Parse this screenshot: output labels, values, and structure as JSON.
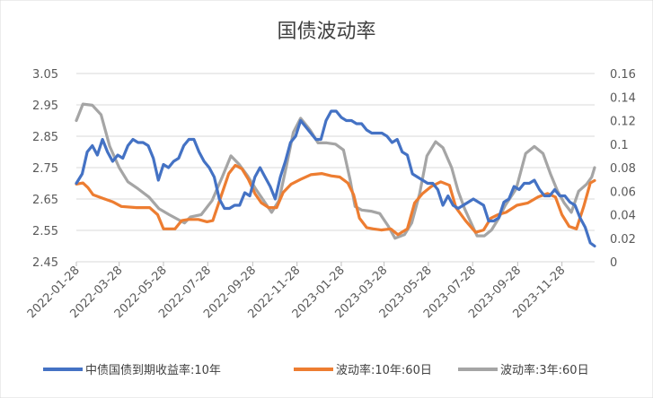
{
  "chart_data": {
    "type": "line",
    "title": "国债波动率",
    "y_left": {
      "min": 2.45,
      "max": 3.05,
      "ticks": [
        "3.05",
        "2.95",
        "2.85",
        "2.75",
        "2.65",
        "2.55",
        "2.45"
      ]
    },
    "y_right": {
      "min": 0,
      "max": 0.16,
      "ticks": [
        "0.16",
        "0.14",
        "0.12",
        "0.1",
        "0.08",
        "0.06",
        "0.04",
        "0.02",
        "0"
      ]
    },
    "x_ticks": [
      "2022-01-28",
      "2022-03-28",
      "2022-05-28",
      "2022-07-28",
      "2022-09-28",
      "2022-11-28",
      "2023-01-28",
      "2023-03-28",
      "2023-05-28",
      "2023-07-28",
      "2023-09-28",
      "2023-11-28"
    ],
    "x_range": [
      "2022-01-28",
      "2024-01-12"
    ],
    "grid": "horizontal",
    "legend_position": "bottom",
    "series": [
      {
        "name": "中债国债到期收益率:10年",
        "axis": "left",
        "color": "#4472C4",
        "points": [
          [
            "2022-01-28",
            2.7
          ],
          [
            "2022-02-05",
            2.73
          ],
          [
            "2022-02-12",
            2.8
          ],
          [
            "2022-02-19",
            2.82
          ],
          [
            "2022-02-26",
            2.79
          ],
          [
            "2022-03-05",
            2.84
          ],
          [
            "2022-03-12",
            2.8
          ],
          [
            "2022-03-19",
            2.77
          ],
          [
            "2022-03-26",
            2.79
          ],
          [
            "2022-04-02",
            2.78
          ],
          [
            "2022-04-09",
            2.82
          ],
          [
            "2022-04-16",
            2.84
          ],
          [
            "2022-04-23",
            2.83
          ],
          [
            "2022-04-30",
            2.83
          ],
          [
            "2022-05-07",
            2.82
          ],
          [
            "2022-05-14",
            2.78
          ],
          [
            "2022-05-21",
            2.71
          ],
          [
            "2022-05-28",
            2.76
          ],
          [
            "2022-06-04",
            2.75
          ],
          [
            "2022-06-11",
            2.77
          ],
          [
            "2022-06-18",
            2.78
          ],
          [
            "2022-06-25",
            2.82
          ],
          [
            "2022-07-02",
            2.84
          ],
          [
            "2022-07-09",
            2.84
          ],
          [
            "2022-07-16",
            2.8
          ],
          [
            "2022-07-23",
            2.77
          ],
          [
            "2022-07-30",
            2.75
          ],
          [
            "2022-08-06",
            2.72
          ],
          [
            "2022-08-13",
            2.65
          ],
          [
            "2022-08-20",
            2.62
          ],
          [
            "2022-08-27",
            2.62
          ],
          [
            "2022-09-03",
            2.63
          ],
          [
            "2022-09-10",
            2.63
          ],
          [
            "2022-09-17",
            2.67
          ],
          [
            "2022-09-24",
            2.66
          ],
          [
            "2022-10-01",
            2.72
          ],
          [
            "2022-10-08",
            2.75
          ],
          [
            "2022-10-15",
            2.72
          ],
          [
            "2022-10-22",
            2.69
          ],
          [
            "2022-10-29",
            2.65
          ],
          [
            "2022-11-05",
            2.72
          ],
          [
            "2022-11-12",
            2.77
          ],
          [
            "2022-11-19",
            2.83
          ],
          [
            "2022-11-26",
            2.85
          ],
          [
            "2022-12-03",
            2.9
          ],
          [
            "2022-12-10",
            2.88
          ],
          [
            "2022-12-17",
            2.86
          ],
          [
            "2022-12-24",
            2.84
          ],
          [
            "2022-12-31",
            2.84
          ],
          [
            "2023-01-07",
            2.9
          ],
          [
            "2023-01-14",
            2.93
          ],
          [
            "2023-01-21",
            2.93
          ],
          [
            "2023-01-28",
            2.91
          ],
          [
            "2023-02-04",
            2.9
          ],
          [
            "2023-02-11",
            2.9
          ],
          [
            "2023-02-18",
            2.89
          ],
          [
            "2023-02-25",
            2.89
          ],
          [
            "2023-03-04",
            2.87
          ],
          [
            "2023-03-11",
            2.86
          ],
          [
            "2023-03-18",
            2.86
          ],
          [
            "2023-03-25",
            2.86
          ],
          [
            "2023-04-01",
            2.85
          ],
          [
            "2023-04-08",
            2.83
          ],
          [
            "2023-04-15",
            2.84
          ],
          [
            "2023-04-22",
            2.8
          ],
          [
            "2023-04-29",
            2.79
          ],
          [
            "2023-05-06",
            2.73
          ],
          [
            "2023-05-13",
            2.72
          ],
          [
            "2023-05-20",
            2.71
          ],
          [
            "2023-05-27",
            2.7
          ],
          [
            "2023-06-03",
            2.7
          ],
          [
            "2023-06-10",
            2.68
          ],
          [
            "2023-06-17",
            2.63
          ],
          [
            "2023-06-24",
            2.66
          ],
          [
            "2023-07-01",
            2.63
          ],
          [
            "2023-07-08",
            2.62
          ],
          [
            "2023-07-15",
            2.63
          ],
          [
            "2023-07-22",
            2.64
          ],
          [
            "2023-07-29",
            2.65
          ],
          [
            "2023-08-05",
            2.64
          ],
          [
            "2023-08-12",
            2.63
          ],
          [
            "2023-08-19",
            2.58
          ],
          [
            "2023-08-26",
            2.58
          ],
          [
            "2023-09-02",
            2.59
          ],
          [
            "2023-09-09",
            2.64
          ],
          [
            "2023-09-16",
            2.65
          ],
          [
            "2023-09-23",
            2.69
          ],
          [
            "2023-09-30",
            2.68
          ],
          [
            "2023-10-07",
            2.7
          ],
          [
            "2023-10-14",
            2.7
          ],
          [
            "2023-10-21",
            2.71
          ],
          [
            "2023-10-28",
            2.68
          ],
          [
            "2023-11-04",
            2.66
          ],
          [
            "2023-11-11",
            2.66
          ],
          [
            "2023-11-18",
            2.68
          ],
          [
            "2023-11-25",
            2.66
          ],
          [
            "2023-12-02",
            2.66
          ],
          [
            "2023-12-09",
            2.64
          ],
          [
            "2023-12-16",
            2.63
          ],
          [
            "2023-12-23",
            2.59
          ],
          [
            "2023-12-30",
            2.56
          ],
          [
            "2024-01-06",
            2.51
          ],
          [
            "2024-01-12",
            2.5
          ]
        ]
      },
      {
        "name": "波动率:10年:60日",
        "axis": "right",
        "color": "#ED7D31",
        "points": [
          [
            "2022-01-28",
            0.066
          ],
          [
            "2022-02-06",
            0.067
          ],
          [
            "2022-02-13",
            0.063
          ],
          [
            "2022-02-20",
            0.057
          ],
          [
            "2022-03-05",
            0.054
          ],
          [
            "2022-03-19",
            0.051
          ],
          [
            "2022-03-31",
            0.047
          ],
          [
            "2022-04-21",
            0.046
          ],
          [
            "2022-05-09",
            0.046
          ],
          [
            "2022-05-20",
            0.04
          ],
          [
            "2022-05-28",
            0.028
          ],
          [
            "2022-06-06",
            0.028
          ],
          [
            "2022-06-13",
            0.028
          ],
          [
            "2022-06-22",
            0.035
          ],
          [
            "2022-07-01",
            0.036
          ],
          [
            "2022-07-15",
            0.036
          ],
          [
            "2022-07-27",
            0.034
          ],
          [
            "2022-08-04",
            0.035
          ],
          [
            "2022-08-15",
            0.055
          ],
          [
            "2022-08-26",
            0.075
          ],
          [
            "2022-09-04",
            0.082
          ],
          [
            "2022-09-13",
            0.079
          ],
          [
            "2022-09-22",
            0.07
          ],
          [
            "2022-10-01",
            0.058
          ],
          [
            "2022-10-10",
            0.05
          ],
          [
            "2022-10-20",
            0.046
          ],
          [
            "2022-10-31",
            0.046
          ],
          [
            "2022-11-09",
            0.059
          ],
          [
            "2022-11-20",
            0.066
          ],
          [
            "2022-12-03",
            0.07
          ],
          [
            "2022-12-17",
            0.074
          ],
          [
            "2023-01-01",
            0.075
          ],
          [
            "2023-01-14",
            0.073
          ],
          [
            "2023-01-26",
            0.072
          ],
          [
            "2023-02-06",
            0.067
          ],
          [
            "2023-02-14",
            0.057
          ],
          [
            "2023-02-22",
            0.037
          ],
          [
            "2023-03-04",
            0.029
          ],
          [
            "2023-03-13",
            0.028
          ],
          [
            "2023-03-24",
            0.027
          ],
          [
            "2023-04-06",
            0.028
          ],
          [
            "2023-04-16",
            0.023
          ],
          [
            "2023-04-29",
            0.028
          ],
          [
            "2023-05-09",
            0.05
          ],
          [
            "2023-05-20",
            0.058
          ],
          [
            "2023-06-01",
            0.064
          ],
          [
            "2023-06-14",
            0.068
          ],
          [
            "2023-06-26",
            0.065
          ],
          [
            "2023-07-05",
            0.046
          ],
          [
            "2023-07-18",
            0.035
          ],
          [
            "2023-08-01",
            0.025
          ],
          [
            "2023-08-12",
            0.027
          ],
          [
            "2023-08-22",
            0.037
          ],
          [
            "2023-09-01",
            0.04
          ],
          [
            "2023-09-12",
            0.042
          ],
          [
            "2023-09-27",
            0.048
          ],
          [
            "2023-10-12",
            0.05
          ],
          [
            "2023-10-26",
            0.055
          ],
          [
            "2023-11-08",
            0.058
          ],
          [
            "2023-11-19",
            0.055
          ],
          [
            "2023-11-28",
            0.04
          ],
          [
            "2023-12-08",
            0.03
          ],
          [
            "2023-12-18",
            0.028
          ],
          [
            "2023-12-28",
            0.047
          ],
          [
            "2024-01-06",
            0.067
          ],
          [
            "2024-01-12",
            0.069
          ]
        ]
      },
      {
        "name": "波动率:3年:60日",
        "axis": "right",
        "color": "#A5A5A5",
        "points": [
          [
            "2022-01-28",
            0.12
          ],
          [
            "2022-02-06",
            0.134
          ],
          [
            "2022-02-19",
            0.133
          ],
          [
            "2022-03-03",
            0.125
          ],
          [
            "2022-03-15",
            0.098
          ],
          [
            "2022-03-28",
            0.08
          ],
          [
            "2022-04-09",
            0.068
          ],
          [
            "2022-04-23",
            0.062
          ],
          [
            "2022-05-08",
            0.055
          ],
          [
            "2022-05-22",
            0.045
          ],
          [
            "2022-06-05",
            0.04
          ],
          [
            "2022-06-20",
            0.035
          ],
          [
            "2022-06-26",
            0.033
          ],
          [
            "2022-07-04",
            0.038
          ],
          [
            "2022-07-19",
            0.04
          ],
          [
            "2022-08-03",
            0.052
          ],
          [
            "2022-08-17",
            0.072
          ],
          [
            "2022-08-29",
            0.09
          ],
          [
            "2022-09-09",
            0.083
          ],
          [
            "2022-09-21",
            0.073
          ],
          [
            "2022-10-02",
            0.062
          ],
          [
            "2022-10-13",
            0.052
          ],
          [
            "2022-10-24",
            0.042
          ],
          [
            "2022-11-03",
            0.052
          ],
          [
            "2022-11-13",
            0.08
          ],
          [
            "2022-11-23",
            0.11
          ],
          [
            "2022-12-03",
            0.122
          ],
          [
            "2022-12-16",
            0.112
          ],
          [
            "2022-12-27",
            0.101
          ],
          [
            "2023-01-08",
            0.101
          ],
          [
            "2023-01-20",
            0.1
          ],
          [
            "2023-01-31",
            0.095
          ],
          [
            "2023-02-09",
            0.07
          ],
          [
            "2023-02-16",
            0.047
          ],
          [
            "2023-02-25",
            0.044
          ],
          [
            "2023-03-10",
            0.043
          ],
          [
            "2023-03-22",
            0.041
          ],
          [
            "2023-04-03",
            0.03
          ],
          [
            "2023-04-12",
            0.02
          ],
          [
            "2023-04-25",
            0.023
          ],
          [
            "2023-05-05",
            0.033
          ],
          [
            "2023-05-16",
            0.058
          ],
          [
            "2023-05-26",
            0.09
          ],
          [
            "2023-06-07",
            0.102
          ],
          [
            "2023-06-17",
            0.097
          ],
          [
            "2023-06-29",
            0.08
          ],
          [
            "2023-07-08",
            0.06
          ],
          [
            "2023-07-17",
            0.045
          ],
          [
            "2023-08-03",
            0.022
          ],
          [
            "2023-08-13",
            0.022
          ],
          [
            "2023-08-23",
            0.027
          ],
          [
            "2023-09-01",
            0.036
          ],
          [
            "2023-09-11",
            0.048
          ],
          [
            "2023-09-26",
            0.062
          ],
          [
            "2023-10-09",
            0.092
          ],
          [
            "2023-10-21",
            0.098
          ],
          [
            "2023-11-02",
            0.092
          ],
          [
            "2023-11-12",
            0.075
          ],
          [
            "2023-11-22",
            0.06
          ],
          [
            "2023-12-01",
            0.05
          ],
          [
            "2023-12-11",
            0.042
          ],
          [
            "2023-12-21",
            0.06
          ],
          [
            "2024-01-01",
            0.066
          ],
          [
            "2024-01-08",
            0.072
          ],
          [
            "2024-01-12",
            0.08
          ]
        ]
      }
    ]
  }
}
